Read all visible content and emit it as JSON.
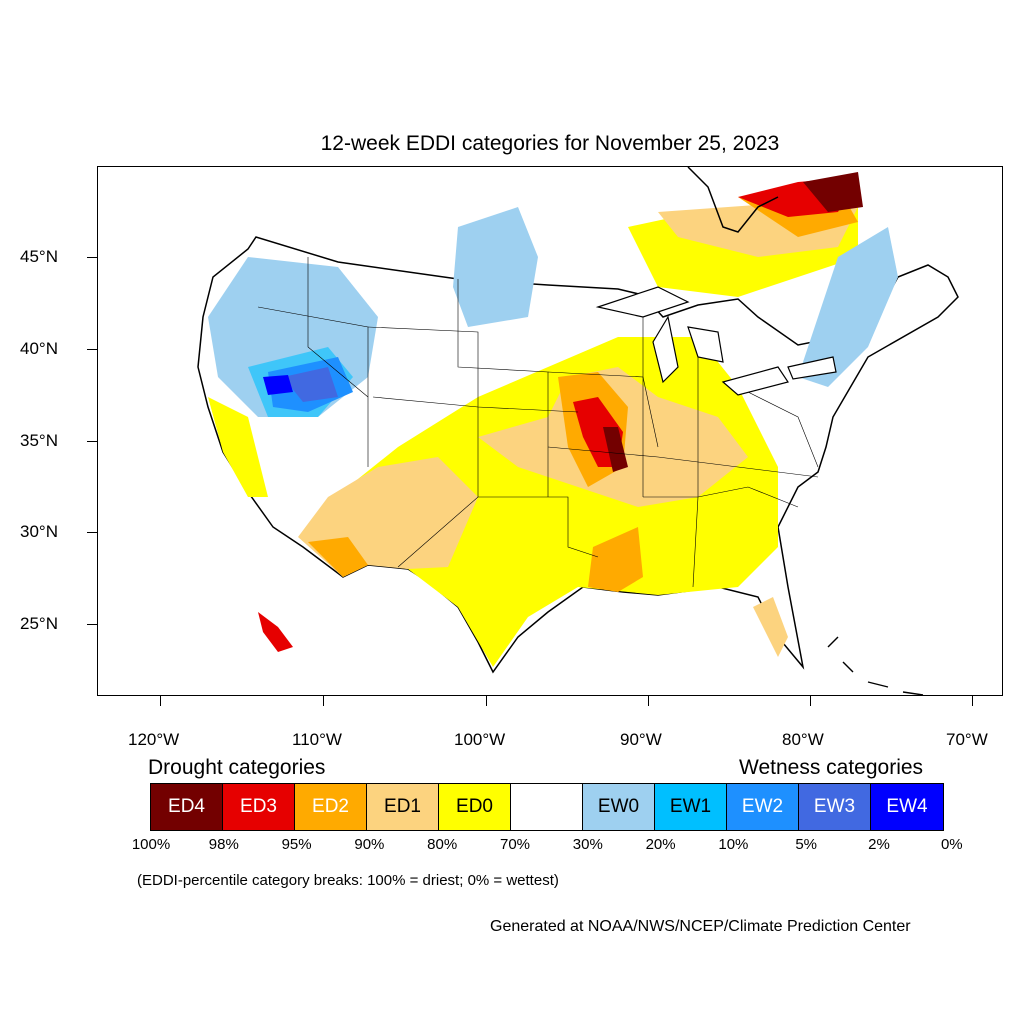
{
  "title": "12-week EDDI categories for November 25, 2023",
  "latitude_labels": [
    "45°N",
    "40°N",
    "35°N",
    "30°N",
    "25°N"
  ],
  "longitude_labels": [
    "120°W",
    "110°W",
    "100°W",
    "90°W",
    "80°W",
    "70°W"
  ],
  "legend": {
    "drought_heading": "Drought categories",
    "wetness_heading": "Wetness categories",
    "categories": [
      {
        "label": "ED4",
        "color": "#730000",
        "text_color": "#ffffff"
      },
      {
        "label": "ED3",
        "color": "#e60000",
        "text_color": "#ffffff"
      },
      {
        "label": "ED2",
        "color": "#ffaa00",
        "text_color": "#ffffff"
      },
      {
        "label": "ED1",
        "color": "#fcd37f",
        "text_color": "#000000"
      },
      {
        "label": "ED0",
        "color": "#ffff00",
        "text_color": "#000000"
      },
      {
        "label": "",
        "color": "#ffffff",
        "text_color": "#000000"
      },
      {
        "label": "EW0",
        "color": "#9ed0f0",
        "text_color": "#000000"
      },
      {
        "label": "EW1",
        "color": "#00bfff",
        "text_color": "#000000"
      },
      {
        "label": "EW2",
        "color": "#1e90ff",
        "text_color": "#ffffff"
      },
      {
        "label": "EW3",
        "color": "#4169e1",
        "text_color": "#ffffff"
      },
      {
        "label": "EW4",
        "color": "#0000ff",
        "text_color": "#ffffff"
      }
    ],
    "breaks": [
      "100%",
      "98%",
      "95%",
      "90%",
      "80%",
      "70%",
      "30%",
      "20%",
      "10%",
      "5%",
      "2%",
      "0%"
    ]
  },
  "note": "(EDDI-percentile category breaks: 100% = driest; 0% = wettest)",
  "credit": "Generated at NOAA/NWS/NCEP/Climate Prediction Center"
}
